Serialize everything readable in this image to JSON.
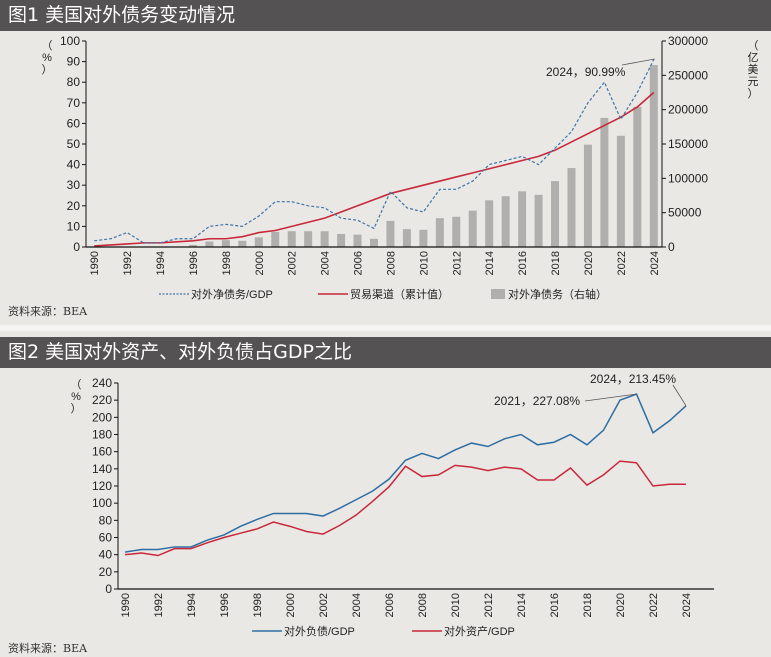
{
  "figures": [
    {
      "title": "图1  美国对外债务变动情况",
      "source": "资料来源：BEA"
    },
    {
      "title": "图2  美国对外资产、对外负债占GDP之比",
      "source": "资料来源：BEA"
    }
  ],
  "chart_data": [
    {
      "type": "bar+line",
      "title": "图1  美国对外债务变动情况",
      "x": [
        "1990",
        "1991",
        "1992",
        "1993",
        "1994",
        "1995",
        "1996",
        "1997",
        "1998",
        "1999",
        "2000",
        "2001",
        "2002",
        "2003",
        "2004",
        "2005",
        "2006",
        "2007",
        "2008",
        "2009",
        "2010",
        "2011",
        "2012",
        "2013",
        "2014",
        "2015",
        "2016",
        "2017",
        "2018",
        "2019",
        "2020",
        "2021",
        "2022",
        "2023",
        "2024"
      ],
      "xticks": [
        "1990",
        "1992",
        "1994",
        "1996",
        "1998",
        "2000",
        "2002",
        "2004",
        "2006",
        "2008",
        "2010",
        "2012",
        "2014",
        "2016",
        "2018",
        "2020",
        "2022",
        "2024"
      ],
      "ylabel_left": "（%）",
      "ylabel_right": "（亿美元）",
      "ylim_left": [
        0,
        100
      ],
      "yticks_left": [
        0,
        10,
        20,
        30,
        40,
        50,
        60,
        70,
        80,
        90,
        100
      ],
      "ylim_right": [
        0,
        300000
      ],
      "yticks_right": [
        0,
        50000,
        100000,
        150000,
        200000,
        250000,
        300000
      ],
      "series": [
        {
          "name": "对外净债务/GDP",
          "axis": "left",
          "style": "dashed-line",
          "color": "#3f74a8",
          "values": [
            3,
            4,
            7,
            2,
            2,
            4,
            4,
            10,
            11,
            10,
            15,
            22,
            22,
            20,
            19,
            14,
            13,
            9,
            27,
            19,
            17,
            28,
            28,
            32,
            40,
            42,
            44,
            40,
            48,
            56,
            70,
            80,
            62,
            75,
            90.99
          ]
        },
        {
          "name": "贸易渠道（累计值）",
          "axis": "left",
          "style": "line",
          "color": "#c8283a",
          "values": [
            0.5,
            1,
            1.5,
            2,
            2,
            2.5,
            3,
            4,
            4,
            5,
            7,
            8,
            10,
            12,
            14,
            17,
            20,
            23,
            26,
            28,
            30,
            32,
            34,
            36,
            38,
            40,
            42,
            44,
            47,
            51,
            55,
            59,
            63,
            68,
            75
          ]
        },
        {
          "name": "对外净债务（右轴）",
          "axis": "right",
          "style": "bar",
          "color": "#b0afad",
          "values": [
            0,
            0,
            0,
            0,
            0,
            0,
            3000,
            8000,
            10000,
            9000,
            14000,
            22000,
            23000,
            23000,
            23000,
            19000,
            18000,
            12000,
            38000,
            26000,
            25000,
            42000,
            44000,
            53000,
            68000,
            74000,
            81000,
            76000,
            96000,
            115000,
            149000,
            188000,
            162000,
            204000,
            265000
          ]
        }
      ],
      "annotations": [
        {
          "text": "2024，90.99%",
          "x": "2024",
          "y": 90.99
        }
      ],
      "legend": [
        "对外净债务/GDP",
        "贸易渠道（累计值）",
        "对外净债务（右轴）"
      ],
      "legend_position": "bottom"
    },
    {
      "type": "line",
      "title": "图2  美国对外资产、对外负债占GDP之比",
      "x": [
        "1990",
        "1991",
        "1992",
        "1993",
        "1994",
        "1995",
        "1996",
        "1997",
        "1998",
        "1999",
        "2000",
        "2001",
        "2002",
        "2003",
        "2004",
        "2005",
        "2006",
        "2007",
        "2008",
        "2009",
        "2010",
        "2011",
        "2012",
        "2013",
        "2014",
        "2015",
        "2016",
        "2017",
        "2018",
        "2019",
        "2020",
        "2021",
        "2022",
        "2023",
        "2024"
      ],
      "xticks": [
        "1990",
        "1992",
        "1994",
        "1996",
        "1998",
        "2000",
        "2002",
        "2004",
        "2006",
        "2008",
        "2010",
        "2012",
        "2014",
        "2016",
        "2018",
        "2020",
        "2022",
        "2024"
      ],
      "ylabel": "（%）",
      "ylim": [
        0,
        240
      ],
      "yticks": [
        0,
        20,
        40,
        60,
        80,
        100,
        120,
        140,
        160,
        180,
        200,
        220,
        240
      ],
      "series": [
        {
          "name": "对外负债/GDP",
          "color": "#2e6da4",
          "values": [
            43,
            46,
            46,
            49,
            49,
            57,
            63,
            73,
            81,
            88,
            88,
            88,
            85,
            94,
            104,
            114,
            128,
            150,
            158,
            152,
            162,
            170,
            166,
            175,
            180,
            168,
            171,
            180,
            168,
            185,
            220,
            227.08,
            182,
            196,
            213.45
          ]
        },
        {
          "name": "对外资产/GDP",
          "color": "#c8283a",
          "values": [
            40,
            42,
            39,
            47,
            47,
            54,
            60,
            65,
            70,
            78,
            73,
            67,
            64,
            74,
            86,
            102,
            119,
            143,
            131,
            133,
            144,
            142,
            138,
            142,
            140,
            127,
            127,
            141,
            121,
            133,
            149,
            147,
            120,
            122,
            122
          ]
        }
      ],
      "annotations": [
        {
          "text": "2021，227.08%",
          "x": "2021",
          "y": 227.08
        },
        {
          "text": "2024，213.45%",
          "x": "2024",
          "y": 213.45
        }
      ],
      "legend": [
        "对外负债/GDP",
        "对外资产/GDP"
      ],
      "legend_position": "bottom"
    }
  ]
}
